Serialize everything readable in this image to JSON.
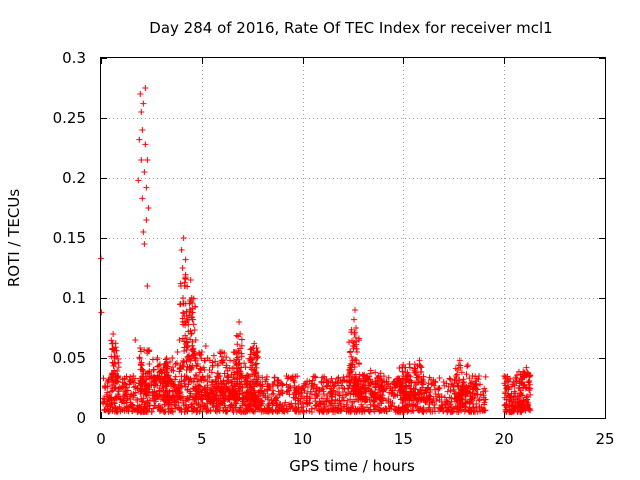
{
  "chart_data": {
    "type": "scatter",
    "title": "Day 284 of 2016, Rate Of TEC Index for receiver mcl1",
    "xlabel": "GPS time / hours",
    "ylabel": "ROTI / TECUs",
    "xlim": [
      0,
      25
    ],
    "ylim": [
      0,
      0.3
    ],
    "grid": true,
    "marker": "+",
    "color": "#ff0000",
    "x_ticks": [
      {
        "value": 0,
        "label": "0"
      },
      {
        "value": 5,
        "label": "5"
      },
      {
        "value": 10,
        "label": "10"
      },
      {
        "value": 15,
        "label": "15"
      },
      {
        "value": 20,
        "label": "20"
      },
      {
        "value": 25,
        "label": "25"
      }
    ],
    "y_ticks": [
      {
        "value": 0,
        "label": "0"
      },
      {
        "value": 0.05,
        "label": "0.05"
      },
      {
        "value": 0.1,
        "label": "0.1"
      },
      {
        "value": 0.15,
        "label": "0.15"
      },
      {
        "value": 0.2,
        "label": "0.2"
      },
      {
        "value": 0.25,
        "label": "0.25"
      },
      {
        "value": 0.3,
        "label": "0.3"
      }
    ],
    "series": [
      {
        "name": "mcl1",
        "points": [
          [
            0.0,
            0.133
          ],
          [
            0.02,
            0.088
          ],
          [
            0.1,
            0.012
          ],
          [
            0.2,
            0.025
          ],
          [
            0.3,
            0.018
          ],
          [
            0.4,
            0.032
          ],
          [
            0.5,
            0.022
          ],
          [
            0.55,
            0.062
          ],
          [
            0.6,
            0.07
          ],
          [
            0.65,
            0.055
          ],
          [
            0.7,
            0.045
          ],
          [
            0.8,
            0.03
          ],
          [
            0.9,
            0.018
          ],
          [
            1.0,
            0.025
          ],
          [
            1.1,
            0.015
          ],
          [
            1.2,
            0.022
          ],
          [
            1.4,
            0.028
          ],
          [
            1.5,
            0.02
          ],
          [
            1.6,
            0.035
          ],
          [
            1.7,
            0.065
          ],
          [
            1.8,
            0.025
          ],
          [
            1.85,
            0.198
          ],
          [
            1.9,
            0.232
          ],
          [
            1.95,
            0.27
          ],
          [
            2.0,
            0.255
          ],
          [
            2.0,
            0.215
          ],
          [
            2.05,
            0.24
          ],
          [
            2.05,
            0.183
          ],
          [
            2.1,
            0.262
          ],
          [
            2.1,
            0.155
          ],
          [
            2.15,
            0.145
          ],
          [
            2.15,
            0.205
          ],
          [
            2.2,
            0.275
          ],
          [
            2.2,
            0.228
          ],
          [
            2.25,
            0.192
          ],
          [
            2.25,
            0.165
          ],
          [
            2.3,
            0.215
          ],
          [
            2.3,
            0.11
          ],
          [
            2.35,
            0.175
          ],
          [
            2.4,
            0.045
          ],
          [
            2.5,
            0.035
          ],
          [
            2.6,
            0.04
          ],
          [
            2.7,
            0.028
          ],
          [
            2.8,
            0.05
          ],
          [
            2.9,
            0.032
          ],
          [
            3.0,
            0.038
          ],
          [
            3.1,
            0.025
          ],
          [
            3.2,
            0.045
          ],
          [
            3.3,
            0.03
          ],
          [
            3.4,
            0.022
          ],
          [
            3.5,
            0.04
          ],
          [
            3.6,
            0.028
          ],
          [
            3.7,
            0.045
          ],
          [
            3.8,
            0.055
          ],
          [
            3.9,
            0.065
          ],
          [
            3.95,
            0.095
          ],
          [
            4.0,
            0.14
          ],
          [
            4.05,
            0.125
          ],
          [
            4.1,
            0.15
          ],
          [
            4.15,
            0.11
          ],
          [
            4.2,
            0.132
          ],
          [
            4.25,
            0.085
          ],
          [
            4.3,
            0.06
          ],
          [
            4.4,
            0.04
          ],
          [
            4.45,
            0.115
          ],
          [
            4.5,
            0.1
          ],
          [
            4.55,
            0.088
          ],
          [
            4.6,
            0.078
          ],
          [
            4.7,
            0.065
          ],
          [
            4.8,
            0.045
          ],
          [
            4.9,
            0.038
          ],
          [
            5.0,
            0.055
          ],
          [
            5.1,
            0.042
          ],
          [
            5.2,
            0.06
          ],
          [
            5.3,
            0.035
          ],
          [
            5.4,
            0.048
          ],
          [
            5.5,
            0.038
          ],
          [
            5.6,
            0.052
          ],
          [
            5.7,
            0.03
          ],
          [
            5.8,
            0.045
          ],
          [
            5.9,
            0.035
          ],
          [
            6.0,
            0.055
          ],
          [
            6.1,
            0.028
          ],
          [
            6.2,
            0.042
          ],
          [
            6.3,
            0.035
          ],
          [
            6.4,
            0.048
          ],
          [
            6.5,
            0.025
          ],
          [
            6.6,
            0.038
          ],
          [
            6.7,
            0.055
          ],
          [
            6.8,
            0.068
          ],
          [
            6.85,
            0.08
          ],
          [
            6.9,
            0.07
          ],
          [
            7.0,
            0.035
          ],
          [
            7.2,
            0.028
          ],
          [
            7.4,
            0.042
          ],
          [
            7.5,
            0.058
          ],
          [
            7.6,
            0.062
          ],
          [
            7.7,
            0.052
          ],
          [
            7.8,
            0.035
          ],
          [
            8.0,
            0.028
          ],
          [
            8.2,
            0.032
          ],
          [
            8.4,
            0.025
          ],
          [
            8.6,
            0.03
          ],
          [
            8.8,
            0.022
          ],
          [
            9.0,
            0.028
          ],
          [
            9.2,
            0.035
          ],
          [
            9.4,
            0.025
          ],
          [
            9.6,
            0.03
          ],
          [
            9.8,
            0.02
          ],
          [
            10.0,
            0.025
          ],
          [
            10.2,
            0.018
          ],
          [
            10.4,
            0.022
          ],
          [
            10.6,
            0.028
          ],
          [
            10.8,
            0.02
          ],
          [
            11.0,
            0.025
          ],
          [
            11.2,
            0.03
          ],
          [
            11.4,
            0.022
          ],
          [
            11.6,
            0.027
          ],
          [
            11.8,
            0.02
          ],
          [
            12.0,
            0.025
          ],
          [
            12.2,
            0.03
          ],
          [
            12.3,
            0.035
          ],
          [
            12.4,
            0.045
          ],
          [
            12.5,
            0.06
          ],
          [
            12.55,
            0.082
          ],
          [
            12.6,
            0.09
          ],
          [
            12.65,
            0.075
          ],
          [
            12.7,
            0.055
          ],
          [
            12.8,
            0.045
          ],
          [
            12.9,
            0.03
          ],
          [
            13.0,
            0.035
          ],
          [
            13.2,
            0.025
          ],
          [
            13.4,
            0.03
          ],
          [
            13.6,
            0.038
          ],
          [
            13.8,
            0.028
          ],
          [
            14.0,
            0.022
          ],
          [
            14.2,
            0.028
          ],
          [
            14.4,
            0.02
          ],
          [
            14.6,
            0.025
          ],
          [
            14.8,
            0.03
          ],
          [
            15.0,
            0.035
          ],
          [
            15.1,
            0.042
          ],
          [
            15.2,
            0.038
          ],
          [
            15.3,
            0.045
          ],
          [
            15.4,
            0.03
          ],
          [
            15.6,
            0.04
          ],
          [
            15.8,
            0.048
          ],
          [
            16.0,
            0.03
          ],
          [
            16.2,
            0.025
          ],
          [
            16.4,
            0.028
          ],
          [
            16.6,
            0.02
          ],
          [
            16.8,
            0.025
          ],
          [
            17.0,
            0.03
          ],
          [
            17.2,
            0.022
          ],
          [
            17.4,
            0.028
          ],
          [
            17.6,
            0.035
          ],
          [
            17.7,
            0.04
          ],
          [
            17.8,
            0.048
          ],
          [
            17.9,
            0.038
          ],
          [
            18.0,
            0.03
          ],
          [
            18.2,
            0.025
          ],
          [
            18.4,
            0.03
          ],
          [
            18.6,
            0.02
          ],
          [
            18.8,
            0.028
          ],
          [
            19.0,
            0.015
          ],
          [
            20.0,
            0.035
          ],
          [
            20.1,
            0.025
          ],
          [
            20.2,
            0.03
          ],
          [
            20.3,
            0.018
          ],
          [
            20.4,
            0.028
          ],
          [
            20.5,
            0.022
          ],
          [
            20.6,
            0.03
          ],
          [
            20.7,
            0.025
          ],
          [
            20.8,
            0.02
          ],
          [
            20.9,
            0.032
          ],
          [
            21.0,
            0.038
          ],
          [
            21.1,
            0.042
          ],
          [
            21.2,
            0.03
          ],
          [
            21.25,
            0.025
          ]
        ]
      }
    ],
    "clusters": [
      {
        "x0": 0.1,
        "x1": 19.1,
        "ymin": 0.005,
        "ymax": 0.035,
        "count": 1500
      },
      {
        "x0": 0.5,
        "x1": 0.9,
        "ymin": 0.03,
        "ymax": 0.065,
        "count": 40
      },
      {
        "x0": 1.9,
        "x1": 2.4,
        "ymin": 0.02,
        "ymax": 0.06,
        "count": 60
      },
      {
        "x0": 2.5,
        "x1": 4.0,
        "ymin": 0.015,
        "ymax": 0.05,
        "count": 120
      },
      {
        "x0": 3.9,
        "x1": 4.3,
        "ymin": 0.04,
        "ymax": 0.12,
        "count": 50
      },
      {
        "x0": 4.3,
        "x1": 4.7,
        "ymin": 0.04,
        "ymax": 0.1,
        "count": 50
      },
      {
        "x0": 4.6,
        "x1": 7.8,
        "ymin": 0.015,
        "ymax": 0.055,
        "count": 250
      },
      {
        "x0": 6.7,
        "x1": 7.0,
        "ymin": 0.03,
        "ymax": 0.07,
        "count": 25
      },
      {
        "x0": 7.4,
        "x1": 7.8,
        "ymin": 0.03,
        "ymax": 0.06,
        "count": 25
      },
      {
        "x0": 12.3,
        "x1": 12.8,
        "ymin": 0.02,
        "ymax": 0.075,
        "count": 70
      },
      {
        "x0": 12.8,
        "x1": 14.0,
        "ymin": 0.015,
        "ymax": 0.04,
        "count": 80
      },
      {
        "x0": 14.8,
        "x1": 16.0,
        "ymin": 0.015,
        "ymax": 0.045,
        "count": 100
      },
      {
        "x0": 17.5,
        "x1": 18.2,
        "ymin": 0.015,
        "ymax": 0.045,
        "count": 50
      },
      {
        "x0": 20.0,
        "x1": 20.5,
        "ymin": 0.005,
        "ymax": 0.035,
        "count": 70
      },
      {
        "x0": 20.5,
        "x1": 21.3,
        "ymin": 0.005,
        "ymax": 0.04,
        "count": 110
      }
    ]
  }
}
